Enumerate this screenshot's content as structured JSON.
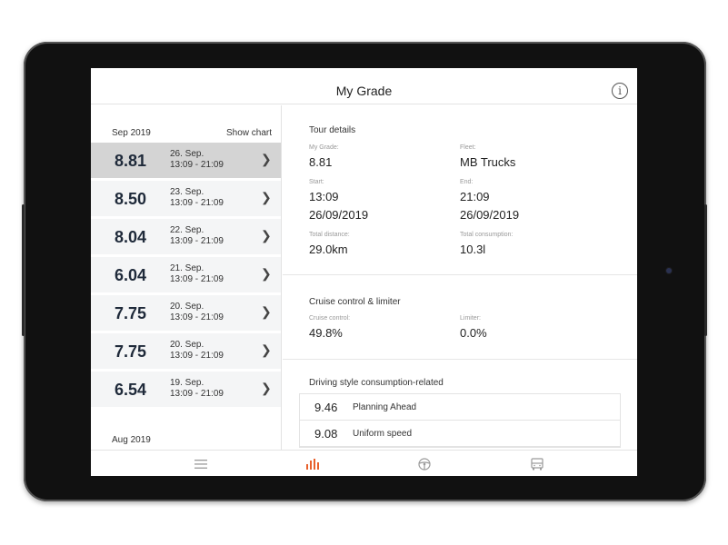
{
  "app": {
    "title": "My Grade",
    "info_icon": "i"
  },
  "tours": {
    "month_current": "Sep 2019",
    "show_chart_label": "Show chart",
    "month_next": "Aug 2019",
    "items": [
      {
        "grade": "8.81",
        "date": "26. Sep.",
        "time": "13:09 - 21:09",
        "selected": true
      },
      {
        "grade": "8.50",
        "date": "23. Sep.",
        "time": "13:09 - 21:09",
        "selected": false
      },
      {
        "grade": "8.04",
        "date": "22. Sep.",
        "time": "13:09 - 21:09",
        "selected": false
      },
      {
        "grade": "6.04",
        "date": "21. Sep.",
        "time": "13:09 - 21:09",
        "selected": false
      },
      {
        "grade": "7.75",
        "date": "20. Sep.",
        "time": "13:09 - 21:09",
        "selected": false
      },
      {
        "grade": "7.75",
        "date": "20. Sep.",
        "time": "13:09 - 21:09",
        "selected": false
      },
      {
        "grade": "6.54",
        "date": "19. Sep.",
        "time": "13:09 - 21:09",
        "selected": false
      }
    ]
  },
  "details": {
    "title": "Tour details",
    "grade_label": "My Grade:",
    "grade_value": "8.81",
    "fleet_label": "Fleet:",
    "fleet_value": "MB Trucks",
    "start_label": "Start:",
    "start_time": "13:09",
    "start_date": "26/09/2019",
    "end_label": "End:",
    "end_time": "21:09",
    "end_date": "26/09/2019",
    "distance_label": "Total distance:",
    "distance_value": "29.0km",
    "consumption_label": "Total consumption:",
    "consumption_value": "10.3l"
  },
  "cruise": {
    "title": "Cruise control & limiter",
    "cc_label": "Cruise control:",
    "cc_value": "49.8%",
    "limiter_label": "Limiter:",
    "limiter_value": "0.0%"
  },
  "driving_style": {
    "title": "Driving style consumption-related",
    "rows": [
      {
        "value": "9.46",
        "label": "Planning Ahead"
      },
      {
        "value": "9.08",
        "label": "Uniform speed"
      }
    ]
  },
  "nav": {
    "items": [
      {
        "icon": "menu-icon",
        "active": false
      },
      {
        "icon": "bar-chart-icon",
        "active": true
      },
      {
        "icon": "steering-wheel-icon",
        "active": false
      },
      {
        "icon": "truck-icon",
        "active": false
      }
    ]
  },
  "colors": {
    "accent": "#e8602c",
    "icon_inactive": "#9a9a9a",
    "selected_row": "#d4d4d4",
    "row_bg": "#f4f5f6"
  }
}
